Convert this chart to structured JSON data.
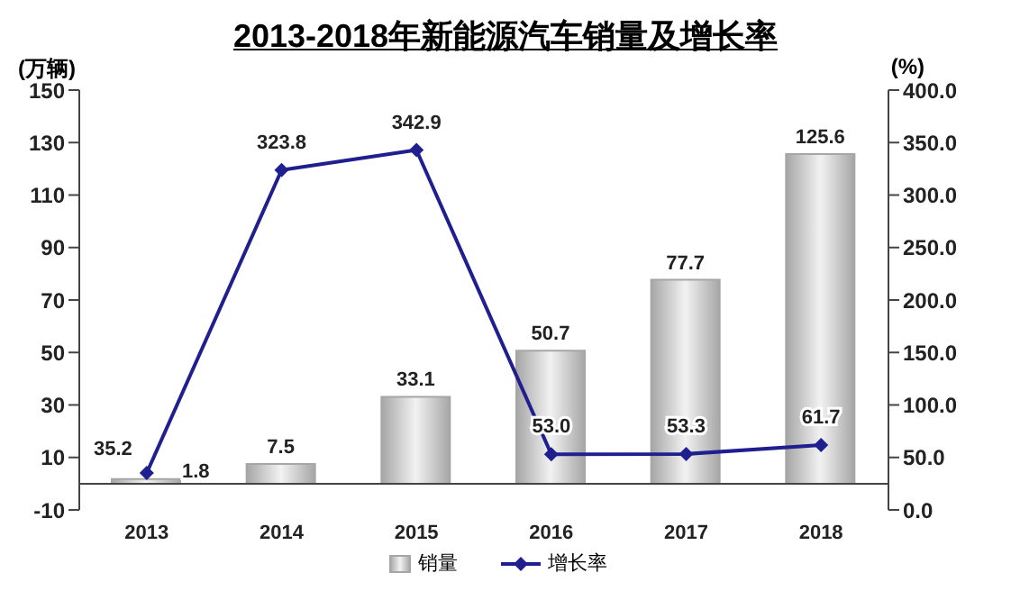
{
  "chart_data": {
    "type": "bar",
    "title": "2013-2018年新能源汽车销量及增长率",
    "ylabel": "(万辆)",
    "y2label": "(%)",
    "categories": [
      "2013",
      "2014",
      "2015",
      "2016",
      "2017",
      "2018"
    ],
    "series": [
      {
        "name": "销量",
        "color": "#a6a6a6",
        "values": [
          1.8,
          7.5,
          33.1,
          50.7,
          77.7,
          125.6
        ],
        "value_labels": [
          "1.8",
          "7.5",
          "33.1",
          "50.7",
          "77.7",
          "125.6"
        ]
      },
      {
        "name": "增长率",
        "type": "line",
        "axis": "y2",
        "color": "#1f1f8f",
        "marker": "diamond",
        "values": [
          35.2,
          323.8,
          342.9,
          53.0,
          53.3,
          61.7
        ],
        "value_labels": [
          "35.2",
          "323.8",
          "342.9",
          "53.0",
          "53.3",
          "61.7"
        ]
      }
    ],
    "ylim": [
      -10,
      150
    ],
    "yticks": [
      -10,
      10,
      30,
      50,
      70,
      90,
      110,
      130,
      150
    ],
    "y2lim": [
      0,
      400
    ],
    "y2ticks": [
      {
        "value": 0,
        "label": "0.0"
      },
      {
        "value": 50,
        "label": "50.0"
      },
      {
        "value": 100,
        "label": "100.0"
      },
      {
        "value": 150,
        "label": "150.0"
      },
      {
        "value": 200,
        "label": "200.0"
      },
      {
        "value": 250,
        "label": "250.0"
      },
      {
        "value": 300,
        "label": "300.0"
      },
      {
        "value": 350,
        "label": "350.0"
      },
      {
        "value": 400,
        "label": "400.0"
      }
    ],
    "grid": false,
    "legend": "bottom"
  }
}
